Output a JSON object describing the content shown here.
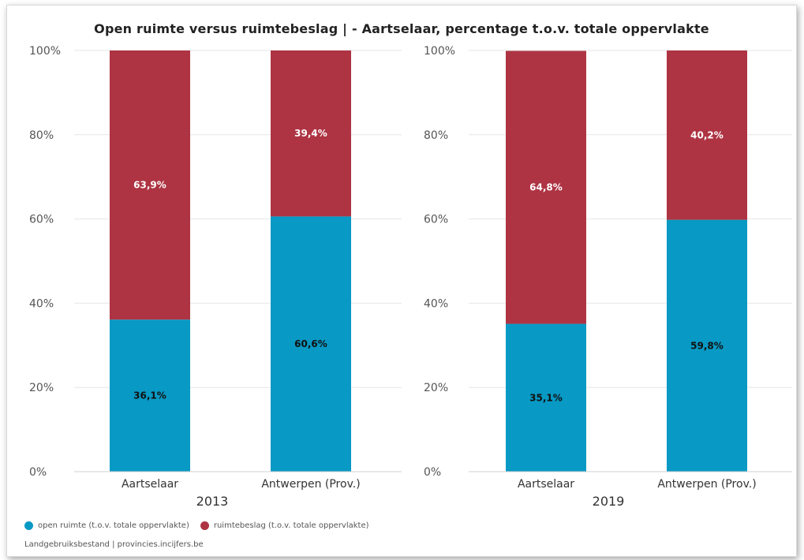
{
  "title": "Open ruimte versus ruimtebeslag | - Aartselaar, percentage t.o.v. totale oppervlakte",
  "colors": {
    "open": "#0899c4",
    "built": "#ae3443"
  },
  "y_ticks": [
    "0%",
    "20%",
    "40%",
    "60%",
    "80%",
    "100%"
  ],
  "legend": [
    {
      "label": "open ruimte (t.o.v. totale oppervlakte)",
      "color": "#0899c4"
    },
    {
      "label": "ruimtebeslag (t.o.v. totale oppervlakte)",
      "color": "#ae3443"
    }
  ],
  "source": "Landgebruiksbestand | provincies.incijfers.be",
  "chart_data": [
    {
      "type": "bar",
      "stacked": true,
      "group": "2013",
      "categories": [
        "Aartselaar",
        "Antwerpen (Prov.)"
      ],
      "series": [
        {
          "name": "open ruimte (t.o.v. totale oppervlakte)",
          "values": [
            36.1,
            60.6
          ],
          "labels": [
            "36,1%",
            "60,6%"
          ]
        },
        {
          "name": "ruimtebeslag (t.o.v. totale oppervlakte)",
          "values": [
            63.9,
            39.4
          ],
          "labels": [
            "63,9%",
            "39,4%"
          ]
        }
      ],
      "ylim": [
        0,
        100
      ],
      "grid": true
    },
    {
      "type": "bar",
      "stacked": true,
      "group": "2019",
      "categories": [
        "Aartselaar",
        "Antwerpen (Prov.)"
      ],
      "series": [
        {
          "name": "open ruimte (t.o.v. totale oppervlakte)",
          "values": [
            35.1,
            59.8
          ],
          "labels": [
            "35,1%",
            "59,8%"
          ]
        },
        {
          "name": "ruimtebeslag (t.o.v. totale oppervlakte)",
          "values": [
            64.8,
            40.2
          ],
          "labels": [
            "64,8%",
            "40,2%"
          ]
        }
      ],
      "ylim": [
        0,
        100
      ],
      "grid": true
    }
  ]
}
